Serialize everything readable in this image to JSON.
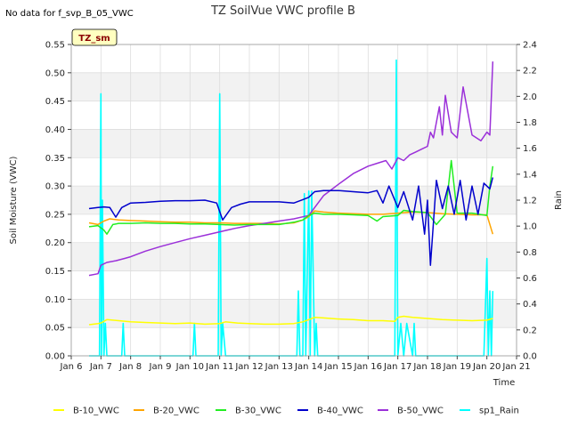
{
  "chart_data": {
    "type": "line",
    "title": "TZ SoilVue VWC profile B",
    "note": "No data for f_svp_B_05_VWC",
    "tag": "TZ_sm",
    "xlabel": "Time",
    "ylabel": "Soil Moisture (VWC)",
    "y2label": "Rain",
    "xlim": [
      6,
      21
    ],
    "ylim": [
      0,
      0.55
    ],
    "y2lim": [
      0,
      2.4
    ],
    "x_ticks": [
      6,
      7,
      8,
      9,
      10,
      11,
      12,
      13,
      14,
      15,
      16,
      17,
      18,
      19,
      20,
      21
    ],
    "x_tick_labels": [
      "Jan 6",
      "Jan 7",
      "Jan 8",
      "Jan 9",
      "Jan 10",
      "Jan 11",
      "Jan 12",
      "Jan 13",
      "Jan 14",
      "Jan 15",
      "Jan 16",
      "Jan 17",
      "Jan 18",
      "Jan 19",
      "Jan 20",
      "Jan 21"
    ],
    "y_ticks": [
      0.0,
      0.05,
      0.1,
      0.15,
      0.2,
      0.25,
      0.3,
      0.35,
      0.4,
      0.45,
      0.5,
      0.55
    ],
    "y_tick_labels": [
      "0.00",
      "0.05",
      "0.10",
      "0.15",
      "0.20",
      "0.25",
      "0.30",
      "0.35",
      "0.40",
      "0.45",
      "0.50",
      "0.55"
    ],
    "y2_ticks": [
      0.0,
      0.2,
      0.4,
      0.6,
      0.8,
      1.0,
      1.2,
      1.4,
      1.6,
      1.8,
      2.0,
      2.2,
      2.4
    ],
    "y2_tick_labels": [
      "0.0",
      "0.2",
      "0.4",
      "0.6",
      "0.8",
      "1.0",
      "1.2",
      "1.4",
      "1.6",
      "1.8",
      "2.0",
      "2.2",
      "2.4"
    ],
    "grid": true,
    "legend_position": "bottom",
    "series": [
      {
        "name": "B-10_VWC",
        "color": "#ffff00",
        "axis": "left",
        "x": [
          6.6,
          6.9,
          7.0,
          7.2,
          7.6,
          8.0,
          8.5,
          9.0,
          9.5,
          10.0,
          10.5,
          11.0,
          11.2,
          11.6,
          12.0,
          12.5,
          13.0,
          13.5,
          13.8,
          14.0,
          14.2,
          14.5,
          15.0,
          15.5,
          16.0,
          16.5,
          16.9,
          17.0,
          17.2,
          17.5,
          18.0,
          18.5,
          19.0,
          19.5,
          20.0,
          20.2
        ],
        "y": [
          0.055,
          0.057,
          0.058,
          0.064,
          0.062,
          0.06,
          0.059,
          0.058,
          0.057,
          0.058,
          0.056,
          0.057,
          0.06,
          0.058,
          0.057,
          0.056,
          0.056,
          0.057,
          0.06,
          0.064,
          0.068,
          0.067,
          0.065,
          0.064,
          0.062,
          0.062,
          0.061,
          0.068,
          0.07,
          0.068,
          0.066,
          0.064,
          0.063,
          0.062,
          0.063,
          0.066
        ]
      },
      {
        "name": "B-20_VWC",
        "color": "#ffa500",
        "axis": "left",
        "x": [
          6.6,
          6.9,
          7.1,
          7.3,
          7.6,
          8.0,
          8.5,
          9.0,
          9.5,
          10.0,
          10.5,
          11.0,
          11.5,
          12.0,
          12.5,
          13.0,
          13.5,
          13.8,
          14.0,
          14.2,
          14.5,
          15.0,
          15.5,
          16.0,
          16.5,
          17.0,
          17.5,
          18.0,
          18.5,
          19.0,
          19.5,
          20.0,
          20.2
        ],
        "y": [
          0.235,
          0.232,
          0.238,
          0.242,
          0.24,
          0.239,
          0.238,
          0.237,
          0.236,
          0.236,
          0.235,
          0.235,
          0.234,
          0.234,
          0.234,
          0.233,
          0.235,
          0.24,
          0.246,
          0.256,
          0.254,
          0.252,
          0.251,
          0.25,
          0.25,
          0.252,
          0.254,
          0.253,
          0.251,
          0.25,
          0.249,
          0.249,
          0.215
        ]
      },
      {
        "name": "B-30_VWC",
        "color": "#22ee22",
        "axis": "left",
        "x": [
          6.6,
          6.9,
          7.1,
          7.2,
          7.4,
          7.6,
          8.0,
          8.5,
          9.0,
          9.5,
          10.0,
          10.5,
          11.0,
          11.5,
          12.0,
          12.5,
          13.0,
          13.5,
          13.8,
          14.0,
          14.2,
          14.5,
          15.0,
          15.5,
          16.0,
          16.3,
          16.5,
          17.0,
          17.2,
          17.5,
          18.0,
          18.3,
          18.6,
          18.8,
          19.0,
          19.5,
          20.0,
          20.1,
          20.2
        ],
        "y": [
          0.228,
          0.23,
          0.222,
          0.215,
          0.232,
          0.234,
          0.234,
          0.235,
          0.234,
          0.234,
          0.233,
          0.233,
          0.232,
          0.231,
          0.232,
          0.232,
          0.232,
          0.236,
          0.24,
          0.248,
          0.252,
          0.25,
          0.25,
          0.249,
          0.248,
          0.238,
          0.246,
          0.248,
          0.257,
          0.255,
          0.253,
          0.232,
          0.25,
          0.345,
          0.252,
          0.252,
          0.248,
          0.3,
          0.335
        ]
      },
      {
        "name": "B-40_VWC",
        "color": "#0000cc",
        "axis": "left",
        "x": [
          6.6,
          6.9,
          7.1,
          7.3,
          7.5,
          7.7,
          8.0,
          8.5,
          9.0,
          9.5,
          10.0,
          10.5,
          10.9,
          11.1,
          11.4,
          11.7,
          12.0,
          12.5,
          13.0,
          13.5,
          13.8,
          14.0,
          14.2,
          14.5,
          15.0,
          15.5,
          16.0,
          16.3,
          16.5,
          16.7,
          17.0,
          17.2,
          17.5,
          17.7,
          17.9,
          18.0,
          18.1,
          18.3,
          18.5,
          18.7,
          18.9,
          19.1,
          19.3,
          19.5,
          19.7,
          19.9,
          20.1,
          20.2
        ],
        "y": [
          0.26,
          0.262,
          0.263,
          0.262,
          0.245,
          0.262,
          0.27,
          0.271,
          0.273,
          0.274,
          0.274,
          0.275,
          0.27,
          0.24,
          0.262,
          0.268,
          0.272,
          0.272,
          0.272,
          0.27,
          0.276,
          0.28,
          0.29,
          0.292,
          0.292,
          0.29,
          0.288,
          0.292,
          0.27,
          0.3,
          0.262,
          0.29,
          0.24,
          0.3,
          0.215,
          0.275,
          0.16,
          0.31,
          0.26,
          0.3,
          0.25,
          0.31,
          0.24,
          0.3,
          0.25,
          0.305,
          0.295,
          0.315
        ]
      },
      {
        "name": "B-50_VWC",
        "color": "#9b30d9",
        "axis": "left",
        "x": [
          6.6,
          6.9,
          7.0,
          7.2,
          7.5,
          7.8,
          8.0,
          8.5,
          9.0,
          9.5,
          10.0,
          10.5,
          11.0,
          11.5,
          12.0,
          12.5,
          13.0,
          13.5,
          14.0,
          14.2,
          14.5,
          15.0,
          15.5,
          16.0,
          16.3,
          16.6,
          16.8,
          17.0,
          17.2,
          17.4,
          17.6,
          17.8,
          18.0,
          18.1,
          18.2,
          18.4,
          18.5,
          18.6,
          18.8,
          19.0,
          19.2,
          19.5,
          19.8,
          20.0,
          20.1,
          20.2
        ],
        "y": [
          0.142,
          0.145,
          0.16,
          0.165,
          0.168,
          0.172,
          0.175,
          0.185,
          0.193,
          0.2,
          0.207,
          0.213,
          0.219,
          0.225,
          0.23,
          0.234,
          0.238,
          0.242,
          0.248,
          0.262,
          0.283,
          0.303,
          0.322,
          0.335,
          0.34,
          0.345,
          0.33,
          0.35,
          0.345,
          0.355,
          0.36,
          0.365,
          0.37,
          0.395,
          0.385,
          0.44,
          0.39,
          0.46,
          0.395,
          0.385,
          0.475,
          0.39,
          0.38,
          0.395,
          0.39,
          0.52
        ]
      },
      {
        "name": "sp1_Rain",
        "color": "#00ffff",
        "axis": "right",
        "x": [
          6.6,
          6.95,
          7.0,
          7.02,
          7.05,
          7.1,
          7.15,
          7.2,
          7.7,
          7.75,
          7.8,
          10.1,
          10.15,
          10.2,
          10.95,
          11.0,
          11.05,
          11.1,
          11.2,
          11.25,
          13.6,
          13.65,
          13.7,
          13.8,
          13.85,
          13.9,
          14.0,
          14.05,
          14.1,
          14.2,
          14.25,
          14.3,
          16.9,
          16.95,
          17.0,
          17.1,
          17.2,
          17.3,
          17.5,
          17.55,
          17.6,
          19.9,
          20.0,
          20.05,
          20.1,
          20.15,
          20.2
        ],
        "y": [
          0.0,
          0.0,
          2.02,
          0.0,
          1.2,
          0.0,
          0.25,
          0.0,
          0.0,
          0.25,
          0.0,
          0.0,
          0.25,
          0.0,
          0.0,
          2.02,
          0.0,
          0.25,
          0.0,
          0.0,
          0.0,
          0.5,
          0.0,
          0.0,
          1.25,
          0.0,
          1.27,
          0.0,
          1.27,
          0.0,
          0.25,
          0.0,
          0.0,
          2.28,
          0.0,
          0.25,
          0.0,
          0.25,
          0.0,
          0.25,
          0.0,
          0.0,
          0.75,
          0.0,
          0.5,
          0.0,
          0.5
        ]
      }
    ]
  }
}
